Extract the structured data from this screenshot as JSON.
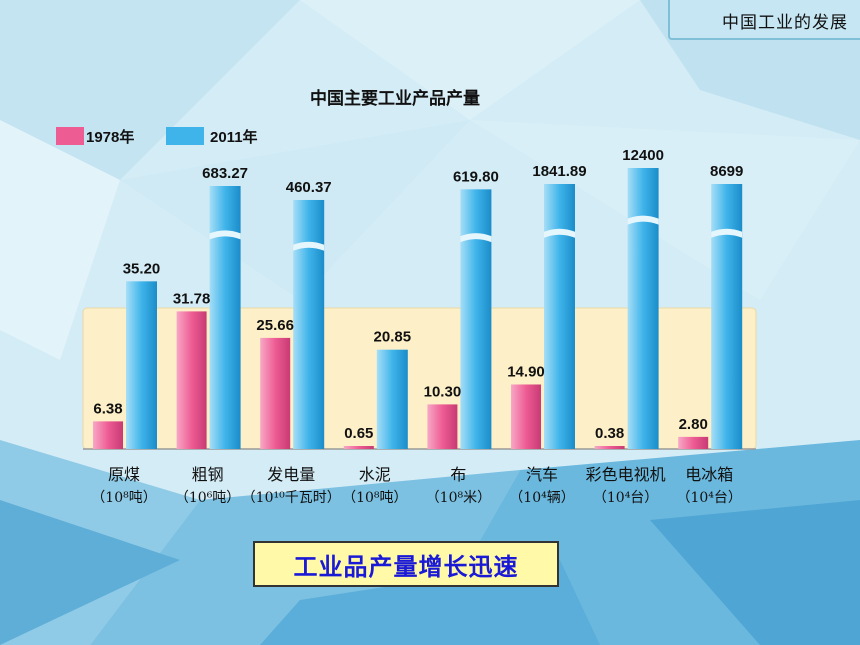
{
  "header": {
    "title": "中国工业的发展"
  },
  "callout": {
    "text": "工业品产量增长迅速"
  },
  "colors": {
    "series_1978": "#ee5c94",
    "series_2011": "#3fb4ea",
    "panel": "#fdf0c8",
    "background": "#d4ecf6"
  },
  "chart_data": {
    "type": "bar",
    "title": "中国主要工业产品产量",
    "legend_position": "top-left",
    "categories": [
      {
        "name": "原煤",
        "unit": "（10⁸吨）"
      },
      {
        "name": "粗钢",
        "unit": "（10⁶吨）"
      },
      {
        "name": "发电量",
        "unit": "（10¹⁰千瓦时）"
      },
      {
        "name": "水泥",
        "unit": "（10⁸吨）"
      },
      {
        "name": "布",
        "unit": "（10⁸米）"
      },
      {
        "name": "汽车",
        "unit": "（10⁴辆）"
      },
      {
        "name": "彩色电视机",
        "unit": "（10⁴台）"
      },
      {
        "name": "电冰箱",
        "unit": "（10⁴台）"
      }
    ],
    "series": [
      {
        "name": "1978年",
        "values": [
          6.38,
          31.78,
          25.66,
          0.65,
          10.3,
          14.9,
          0.38,
          2.8
        ]
      },
      {
        "name": "2011年",
        "values": [
          35.2,
          683.27,
          460.37,
          20.85,
          619.8,
          1841.89,
          12400,
          8699
        ]
      }
    ],
    "value_labels": [
      [
        "6.38",
        "31.78",
        "25.66",
        "0.65",
        "10.30",
        "14.90",
        "0.38",
        "2.80"
      ],
      [
        "35.20",
        "683.27",
        "460.37",
        "20.85",
        "619.80",
        "1841.89",
        "12400",
        "8699"
      ]
    ],
    "broken_axis_bars": [
      false,
      true,
      true,
      false,
      true,
      true,
      true,
      true
    ],
    "y_axis_visible": false
  }
}
